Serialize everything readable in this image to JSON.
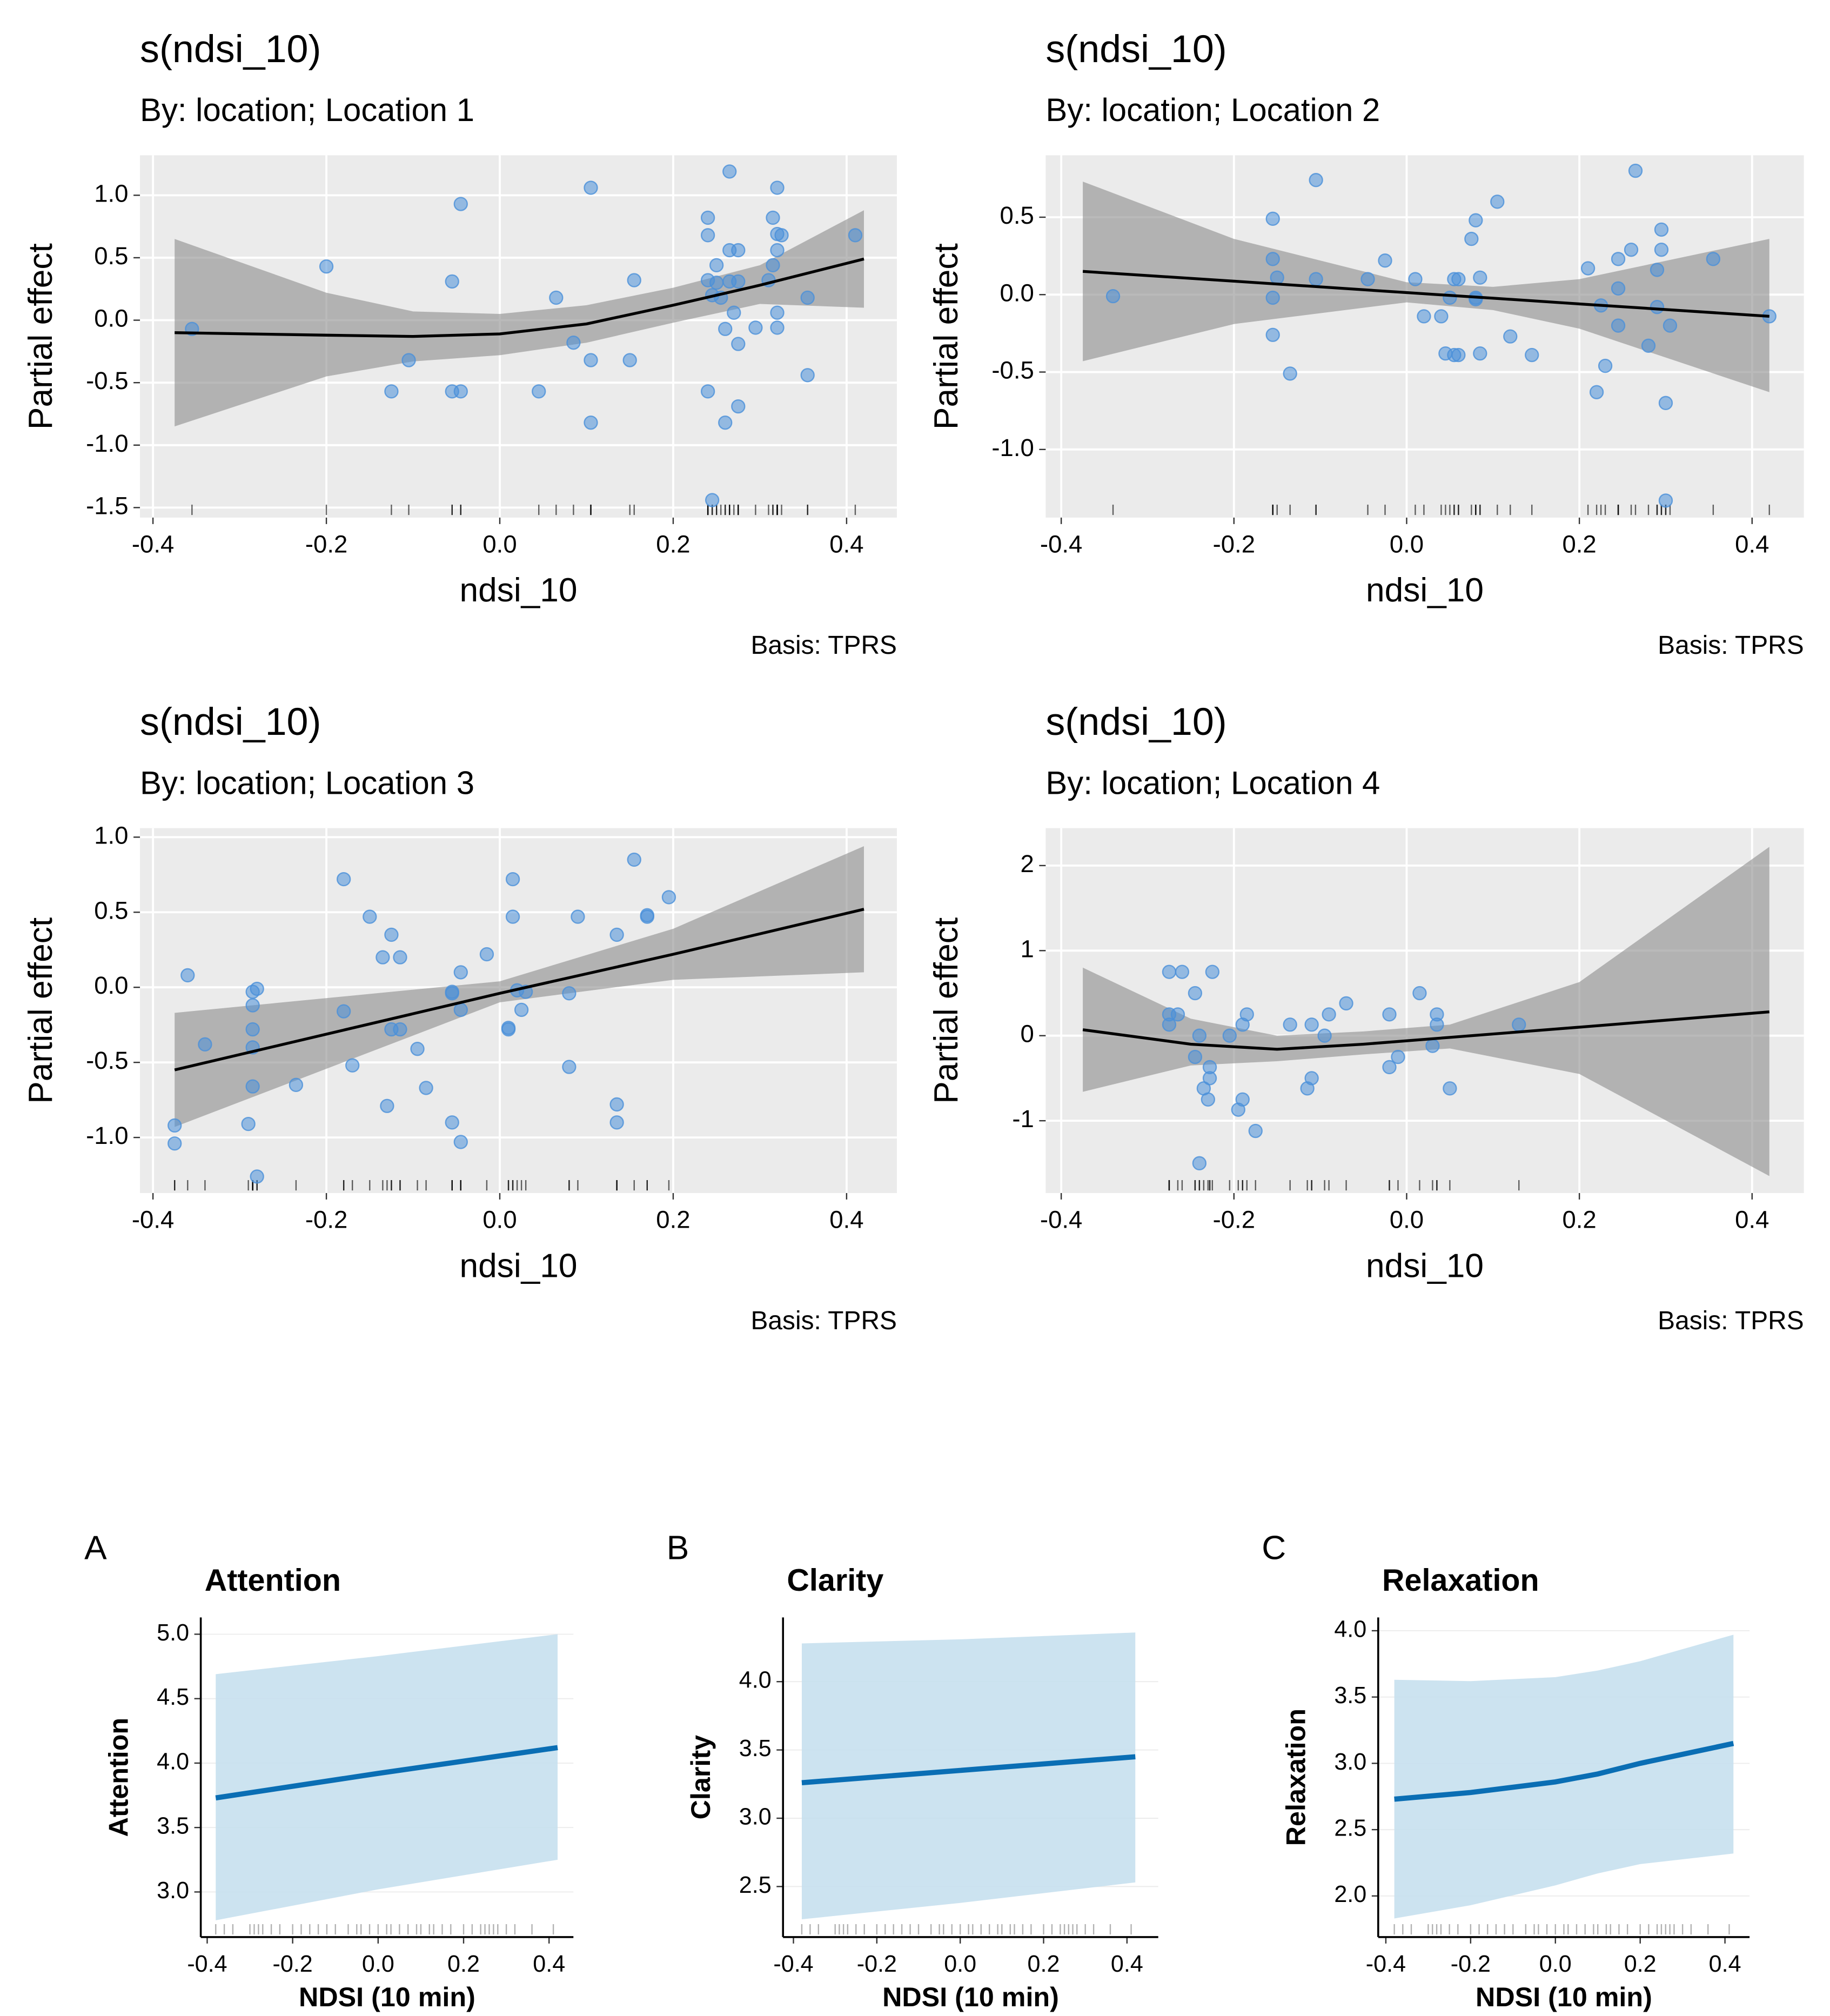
{
  "chart_data": [
    {
      "type": "smooth",
      "title": "s(ndsi_10)",
      "subtitle": "By: location; Location 1",
      "xlabel": "ndsi_10",
      "ylabel": "Partial effect",
      "caption": "Basis: TPRS",
      "xlim": [
        -0.415,
        0.458
      ],
      "ylim": [
        -1.58,
        1.32
      ],
      "xticks": [
        -0.4,
        -0.2,
        {
          "value": 0,
          "label": "0.0"
        },
        0.2,
        0.4
      ],
      "yticks": [
        -1.5,
        {
          "value": -1,
          "label": "-1.0"
        },
        -0.5,
        {
          "value": 0,
          "label": "0.0"
        },
        0.5,
        {
          "value": 1,
          "label": "1.0"
        }
      ],
      "grid": true,
      "background": "#ebebeb",
      "line_color": "#000000",
      "band_color": "#8c8c8c",
      "x": [
        -0.375,
        -0.2,
        -0.1,
        0,
        0.1,
        0.2,
        0.3,
        0.42
      ],
      "values": [
        -0.1,
        -0.12,
        -0.13,
        -0.11,
        -0.03,
        0.12,
        0.28,
        0.49
      ],
      "lower": [
        -0.85,
        -0.45,
        -0.33,
        -0.28,
        -0.18,
        -0.02,
        0.13,
        0.1
      ],
      "upper": [
        0.65,
        0.22,
        0.07,
        0.05,
        0.12,
        0.26,
        0.44,
        0.88
      ],
      "points": {
        "color": "#4a90d9",
        "x": [
          -0.355,
          -0.2,
          -0.125,
          -0.105,
          -0.055,
          -0.055,
          -0.045,
          -0.045,
          0.045,
          0.065,
          0.085,
          0.105,
          0.105,
          0.105,
          0.155,
          0.15,
          0.24,
          0.24,
          0.24,
          0.24,
          0.245,
          0.245,
          0.25,
          0.25,
          0.255,
          0.26,
          0.26,
          0.265,
          0.265,
          0.265,
          0.27,
          0.275,
          0.275,
          0.275,
          0.275,
          0.295,
          0.31,
          0.315,
          0.315,
          0.32,
          0.32,
          0.32,
          0.32,
          0.32,
          0.325,
          0.355,
          0.355,
          0.41
        ],
        "y": [
          -0.07,
          0.43,
          -0.57,
          -0.32,
          0.31,
          -0.57,
          0.93,
          -0.57,
          -0.57,
          0.18,
          -0.18,
          1.06,
          -0.32,
          -0.82,
          0.32,
          -0.32,
          0.82,
          0.68,
          0.32,
          -0.57,
          -1.44,
          0.2,
          0.44,
          0.3,
          0.18,
          -0.82,
          -0.07,
          1.19,
          0.56,
          0.31,
          0.06,
          0.56,
          -0.19,
          -0.69,
          0.31,
          -0.06,
          0.32,
          0.82,
          0.44,
          1.06,
          0.69,
          0.06,
          -0.06,
          0.56,
          0.68,
          0.18,
          -0.44,
          0.68
        ]
      }
    },
    {
      "type": "smooth",
      "title": "s(ndsi_10)",
      "subtitle": "By: location; Location 2",
      "xlabel": "ndsi_10",
      "ylabel": "Partial effect",
      "caption": "Basis: TPRS",
      "xlim": [
        -0.418,
        0.46
      ],
      "ylim": [
        -1.44,
        0.9
      ],
      "xticks": [
        -0.4,
        -0.2,
        {
          "value": 0,
          "label": "0.0"
        },
        0.2,
        0.4
      ],
      "yticks": [
        {
          "value": -1,
          "label": "-1.0"
        },
        -0.5,
        {
          "value": 0,
          "label": "0.0"
        },
        0.5
      ],
      "grid": true,
      "background": "#ebebeb",
      "line_color": "#000000",
      "band_color": "#8c8c8c",
      "x": [
        -0.375,
        -0.2,
        0,
        0.1,
        0.2,
        0.42
      ],
      "values": [
        0.15,
        0.087,
        0.013,
        -0.023,
        -0.06,
        -0.14
      ],
      "lower": [
        -0.43,
        -0.19,
        -0.05,
        -0.1,
        -0.22,
        -0.63
      ],
      "upper": [
        0.73,
        0.36,
        0.08,
        0.05,
        0.1,
        0.36
      ],
      "points": {
        "color": "#4a90d9",
        "x": [
          -0.34,
          -0.155,
          -0.155,
          -0.155,
          -0.155,
          -0.15,
          -0.135,
          -0.105,
          -0.105,
          -0.045,
          -0.025,
          0.01,
          0.02,
          0.04,
          0.045,
          0.05,
          0.055,
          0.055,
          0.06,
          0.06,
          0.075,
          0.08,
          0.08,
          0.08,
          0.085,
          0.085,
          0.105,
          0.12,
          0.145,
          0.21,
          0.22,
          0.225,
          0.23,
          0.245,
          0.245,
          0.245,
          0.26,
          0.265,
          0.28,
          0.29,
          0.29,
          0.295,
          0.295,
          0.3,
          0.3,
          0.305,
          0.355,
          0.42
        ],
        "y": [
          -0.01,
          0.49,
          0.23,
          -0.02,
          -0.26,
          0.11,
          -0.51,
          0.74,
          0.1,
          0.1,
          0.22,
          0.1,
          -0.14,
          -0.14,
          -0.38,
          -0.02,
          0.1,
          -0.39,
          0.1,
          -0.39,
          0.36,
          0.48,
          -0.02,
          -0.03,
          0.11,
          -0.38,
          0.6,
          -0.27,
          -0.39,
          0.17,
          -0.63,
          -0.07,
          -0.46,
          0.04,
          0.23,
          -0.2,
          0.29,
          0.8,
          -0.33,
          0.16,
          -0.08,
          0.29,
          0.42,
          -0.7,
          -1.33,
          -0.2,
          0.23,
          -0.14
        ]
      }
    },
    {
      "type": "smooth",
      "title": "s(ndsi_10)",
      "subtitle": "By: location; Location 3",
      "xlabel": "ndsi_10",
      "ylabel": "Partial effect",
      "caption": "Basis: TPRS",
      "xlim": [
        -0.415,
        0.458
      ],
      "ylim": [
        -1.37,
        1.06
      ],
      "xticks": [
        -0.4,
        -0.2,
        {
          "value": 0,
          "label": "0.0"
        },
        0.2,
        0.4
      ],
      "yticks": [
        {
          "value": -1,
          "label": "-1.0"
        },
        -0.5,
        {
          "value": 0,
          "label": "0.0"
        },
        0.5,
        {
          "value": 1,
          "label": "1.0"
        }
      ],
      "grid": true,
      "background": "#ebebeb",
      "line_color": "#000000",
      "band_color": "#8c8c8c",
      "x": [
        -0.375,
        0,
        0.2,
        0.42
      ],
      "values": [
        -0.55,
        -0.04,
        0.22,
        0.52
      ],
      "lower": [
        -0.93,
        -0.1,
        0.05,
        0.1
      ],
      "upper": [
        -0.17,
        0.04,
        0.39,
        0.94
      ],
      "points": {
        "color": "#4a90d9",
        "x": [
          -0.375,
          -0.375,
          -0.36,
          -0.34,
          -0.29,
          -0.285,
          -0.285,
          -0.285,
          -0.285,
          -0.285,
          -0.28,
          -0.28,
          -0.235,
          -0.18,
          -0.18,
          -0.17,
          -0.15,
          -0.135,
          -0.13,
          -0.125,
          -0.125,
          -0.115,
          -0.115,
          -0.095,
          -0.085,
          -0.055,
          -0.055,
          -0.055,
          -0.045,
          -0.045,
          -0.045,
          -0.015,
          0.01,
          0.01,
          0.015,
          0.015,
          0.02,
          0.025,
          0.03,
          0.08,
          0.08,
          0.09,
          0.135,
          0.135,
          0.135,
          0.155,
          0.17,
          0.17,
          0.195
        ],
        "y": [
          -0.92,
          -1.04,
          0.08,
          -0.38,
          -0.91,
          -0.12,
          -0.28,
          -0.4,
          -0.66,
          -0.03,
          -0.01,
          -1.26,
          -0.65,
          0.72,
          -0.16,
          -0.52,
          0.47,
          0.2,
          -0.79,
          0.35,
          -0.28,
          0.2,
          -0.28,
          -0.41,
          -0.67,
          -0.03,
          -0.04,
          -0.9,
          0.1,
          -0.15,
          -1.03,
          0.22,
          -0.28,
          -0.27,
          0.72,
          0.47,
          -0.02,
          -0.15,
          -0.03,
          -0.04,
          -0.53,
          0.47,
          0.35,
          -0.78,
          -0.9,
          0.85,
          0.47,
          0.48,
          0.6
        ]
      }
    },
    {
      "type": "smooth",
      "title": "s(ndsi_10)",
      "subtitle": "By: location; Location 4",
      "xlabel": "ndsi_10",
      "ylabel": "Partial effect",
      "caption": "Basis: TPRS",
      "xlim": [
        -0.418,
        0.46
      ],
      "ylim": [
        -1.85,
        2.44
      ],
      "xticks": [
        -0.4,
        -0.2,
        {
          "value": 0,
          "label": "0.0"
        },
        0.2,
        0.4
      ],
      "yticks": [
        -1,
        0,
        1,
        2
      ],
      "grid": true,
      "background": "#ebebeb",
      "line_color": "#000000",
      "band_color": "#8c8c8c",
      "x": [
        -0.375,
        -0.25,
        -0.15,
        -0.05,
        0.05,
        0.2,
        0.42
      ],
      "values": [
        0.07,
        -0.1,
        -0.16,
        -0.1,
        -0.02,
        0.1,
        0.28
      ],
      "lower": [
        -0.66,
        -0.35,
        -0.3,
        -0.22,
        -0.15,
        -0.45,
        -1.65
      ],
      "upper": [
        0.8,
        0.2,
        0,
        0.05,
        0.13,
        0.63,
        2.22
      ],
      "points": {
        "color": "#4a90d9",
        "x": [
          -0.275,
          -0.275,
          -0.275,
          -0.265,
          -0.26,
          -0.245,
          -0.245,
          -0.24,
          -0.24,
          -0.235,
          -0.23,
          -0.228,
          -0.228,
          -0.225,
          -0.205,
          -0.195,
          -0.19,
          -0.19,
          -0.185,
          -0.175,
          -0.135,
          -0.115,
          -0.11,
          -0.11,
          -0.095,
          -0.09,
          -0.07,
          -0.02,
          -0.02,
          -0.01,
          0.015,
          0.03,
          0.035,
          0.035,
          0.05,
          0.13
        ],
        "y": [
          0.75,
          0.25,
          0.13,
          0.25,
          0.75,
          0.5,
          -0.25,
          0,
          -1.5,
          -0.62,
          -0.75,
          -0.37,
          -0.5,
          0.75,
          0,
          -0.87,
          -0.75,
          0.13,
          0.25,
          -1.12,
          0.13,
          -0.62,
          0.13,
          -0.5,
          0,
          0.25,
          0.38,
          0.25,
          -0.37,
          -0.25,
          0.5,
          -0.12,
          0.25,
          0.13,
          -0.62,
          0.13
        ]
      }
    },
    {
      "type": "smooth",
      "panel_label": "A",
      "title": "Attention",
      "xlabel": "NDSI (10 min)",
      "ylabel": "Attention",
      "xlim": [
        -0.415,
        0.457
      ],
      "ylim": [
        2.65,
        5.13
      ],
      "xticks": [
        -0.4,
        -0.2,
        {
          "value": 0,
          "label": "0.0"
        },
        0.2,
        0.4
      ],
      "yticks": [
        {
          "value": 3,
          "label": "3.0"
        },
        3.5,
        {
          "value": 4,
          "label": "4.0"
        },
        4.5,
        {
          "value": 5,
          "label": "5.0"
        }
      ],
      "grid": true,
      "background": "#ffffff",
      "line_color": "#0a6eb4",
      "band_color": "#c6e0ee",
      "x": [
        -0.38,
        0,
        0.42
      ],
      "values": [
        3.73,
        3.92,
        4.12
      ],
      "lower": [
        2.78,
        3.02,
        3.25
      ],
      "upper": [
        4.69,
        4.83,
        5.0
      ],
      "rug": [
        -0.38,
        -0.36,
        -0.34,
        -0.3,
        -0.29,
        -0.28,
        -0.27,
        -0.25,
        -0.23,
        -0.2,
        -0.18,
        -0.16,
        -0.14,
        -0.12,
        -0.1,
        -0.07,
        -0.05,
        -0.04,
        -0.02,
        0,
        0.02,
        0.03,
        0.05,
        0.07,
        0.09,
        0.1,
        0.12,
        0.13,
        0.15,
        0.17,
        0.2,
        0.22,
        0.24,
        0.25,
        0.26,
        0.27,
        0.28,
        0.3,
        0.32,
        0.36,
        0.41
      ]
    },
    {
      "type": "smooth",
      "panel_label": "B",
      "title": "Clarity",
      "xlabel": "NDSI (10 min)",
      "ylabel": "Clarity",
      "xlim": [
        -0.425,
        0.475
      ],
      "ylim": [
        2.13,
        4.47
      ],
      "xticks": [
        -0.4,
        -0.2,
        {
          "value": 0,
          "label": "0.0"
        },
        0.2,
        0.4
      ],
      "yticks": [
        2.5,
        {
          "value": 3,
          "label": "3.0"
        },
        3.5,
        {
          "value": 4,
          "label": "4.0"
        }
      ],
      "grid": true,
      "background": "#ffffff",
      "line_color": "#0a6eb4",
      "band_color": "#c6e0ee",
      "x": [
        -0.38,
        0,
        0.42
      ],
      "values": [
        3.26,
        3.35,
        3.45
      ],
      "lower": [
        2.26,
        2.38,
        2.53
      ],
      "upper": [
        4.28,
        4.31,
        4.36
      ],
      "rug": [
        -0.38,
        -0.36,
        -0.34,
        -0.3,
        -0.29,
        -0.28,
        -0.27,
        -0.25,
        -0.23,
        -0.2,
        -0.18,
        -0.16,
        -0.14,
        -0.12,
        -0.1,
        -0.07,
        -0.05,
        -0.04,
        -0.02,
        0,
        0.02,
        0.03,
        0.05,
        0.07,
        0.09,
        0.1,
        0.12,
        0.13,
        0.15,
        0.17,
        0.2,
        0.22,
        0.24,
        0.25,
        0.26,
        0.27,
        0.28,
        0.3,
        0.32,
        0.36,
        0.41
      ]
    },
    {
      "type": "smooth",
      "panel_label": "C",
      "title": "Relaxation",
      "xlabel": "NDSI (10 min)",
      "ylabel": "Relaxation",
      "xlim": [
        -0.418,
        0.458
      ],
      "ylim": [
        1.69,
        4.1
      ],
      "xticks": [
        -0.4,
        -0.2,
        {
          "value": 0,
          "label": "0.0"
        },
        0.2,
        0.4
      ],
      "yticks": [
        {
          "value": 2,
          "label": "2.0"
        },
        2.5,
        {
          "value": 3,
          "label": "3.0"
        },
        3.5,
        {
          "value": 4,
          "label": "4.0"
        }
      ],
      "grid": true,
      "background": "#ffffff",
      "line_color": "#0a6eb4",
      "band_color": "#c6e0ee",
      "x": [
        -0.38,
        -0.2,
        0,
        0.1,
        0.2,
        0.42
      ],
      "values": [
        2.73,
        2.78,
        2.86,
        2.92,
        3.0,
        3.15
      ],
      "lower": [
        1.83,
        1.93,
        2.08,
        2.17,
        2.24,
        2.32
      ],
      "upper": [
        3.63,
        3.62,
        3.65,
        3.7,
        3.77,
        3.97
      ],
      "rug": [
        -0.38,
        -0.36,
        -0.34,
        -0.3,
        -0.29,
        -0.28,
        -0.27,
        -0.25,
        -0.23,
        -0.2,
        -0.18,
        -0.16,
        -0.14,
        -0.12,
        -0.1,
        -0.07,
        -0.05,
        -0.04,
        -0.02,
        0,
        0.02,
        0.03,
        0.05,
        0.07,
        0.09,
        0.1,
        0.12,
        0.13,
        0.15,
        0.17,
        0.2,
        0.22,
        0.24,
        0.25,
        0.26,
        0.27,
        0.28,
        0.3,
        0.32,
        0.36,
        0.41
      ]
    }
  ]
}
